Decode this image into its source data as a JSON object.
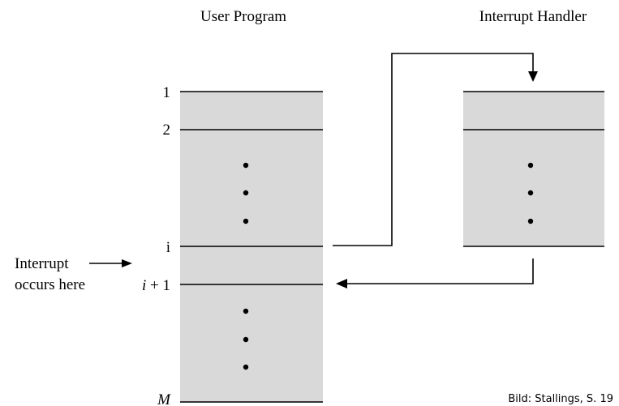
{
  "user_program": {
    "title": "User Program",
    "labels": {
      "line_1": "1",
      "line_2": "2",
      "line_i": "i",
      "line_i1_italic": "i",
      "line_i1_rest": " + 1",
      "line_m": "M"
    }
  },
  "interrupt_handler": {
    "title": "Interrupt Handler"
  },
  "annotation": {
    "line1": "Interrupt",
    "line2": "occurs here"
  },
  "credit": "Bild: Stallings, S. 19"
}
